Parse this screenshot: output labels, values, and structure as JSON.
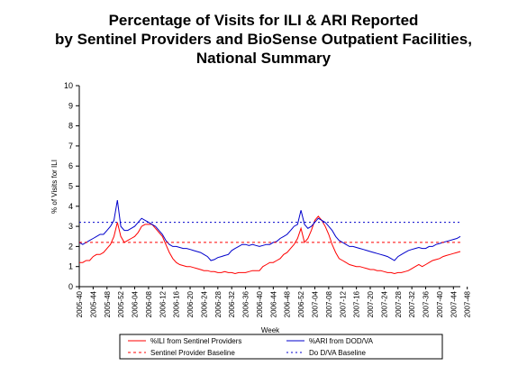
{
  "chart_data": {
    "type": "line",
    "title_lines": [
      "Percentage of Visits for ILI & ARI Reported",
      "by Sentinel Providers and BioSense Outpatient Facilities,",
      "National Summary"
    ],
    "xlabel": "Week",
    "ylabel": "% of Visits for ILI",
    "ylim": [
      0,
      10
    ],
    "yticks": [
      "0",
      "1",
      "2",
      "3",
      "4",
      "5",
      "6",
      "7",
      "8",
      "9",
      "10"
    ],
    "xtick_labels": [
      "2005-40",
      "2005-44",
      "2005-48",
      "2005-52",
      "2006-04",
      "2006-08",
      "2006-12",
      "2006-16",
      "2006-20",
      "2006-24",
      "2006-28",
      "2006-32",
      "2006-36",
      "2006-40",
      "2006-44",
      "2006-48",
      "2006-52",
      "2007-04",
      "2007-08",
      "2007-12",
      "2007-16",
      "2007-20",
      "2007-24",
      "2007-28",
      "2007-32",
      "2007-36",
      "2007-40",
      "2007-44",
      "2007-48"
    ],
    "series": [
      {
        "name": "%ILI from Sentinel Providers",
        "color": "#ff0000",
        "style": "solid",
        "values": [
          1.2,
          1.2,
          1.3,
          1.3,
          1.5,
          1.6,
          1.6,
          1.7,
          1.9,
          2.1,
          2.5,
          3.2,
          2.5,
          2.2,
          2.3,
          2.4,
          2.5,
          2.7,
          3.0,
          3.1,
          3.1,
          3.1,
          2.9,
          2.7,
          2.5,
          2.1,
          1.7,
          1.4,
          1.2,
          1.1,
          1.05,
          1.0,
          1.0,
          0.95,
          0.9,
          0.85,
          0.8,
          0.8,
          0.75,
          0.75,
          0.7,
          0.7,
          0.75,
          0.7,
          0.7,
          0.65,
          0.7,
          0.7,
          0.7,
          0.75,
          0.8,
          0.8,
          0.8,
          1.0,
          1.1,
          1.2,
          1.2,
          1.3,
          1.4,
          1.6,
          1.7,
          1.9,
          2.1,
          2.4,
          2.9,
          2.2,
          2.4,
          2.8,
          3.3,
          3.5,
          3.3,
          3.0,
          2.6,
          2.1,
          1.7,
          1.4,
          1.3,
          1.2,
          1.1,
          1.05,
          1.0,
          1.0,
          0.95,
          0.9,
          0.85,
          0.85,
          0.8,
          0.8,
          0.75,
          0.7,
          0.7,
          0.65,
          0.7,
          0.7,
          0.75,
          0.8,
          0.9,
          1.0,
          1.1,
          1.0,
          1.1,
          1.2,
          1.3,
          1.35,
          1.4,
          1.5,
          1.55,
          1.6,
          1.65,
          1.7,
          1.75
        ]
      },
      {
        "name": "%ARI from DOD/VA",
        "color": "#0000cc",
        "style": "solid",
        "values": [
          2.2,
          2.1,
          2.2,
          2.3,
          2.4,
          2.5,
          2.6,
          2.6,
          2.8,
          3.0,
          3.3,
          4.3,
          3.0,
          2.8,
          2.8,
          2.9,
          3.0,
          3.2,
          3.4,
          3.3,
          3.2,
          3.1,
          3.0,
          2.8,
          2.6,
          2.3,
          2.1,
          2.0,
          2.0,
          1.95,
          1.9,
          1.9,
          1.85,
          1.8,
          1.75,
          1.7,
          1.6,
          1.5,
          1.3,
          1.35,
          1.45,
          1.5,
          1.55,
          1.6,
          1.8,
          1.9,
          2.0,
          2.1,
          2.1,
          2.05,
          2.1,
          2.05,
          2.0,
          2.05,
          2.1,
          2.1,
          2.2,
          2.25,
          2.4,
          2.5,
          2.6,
          2.8,
          3.0,
          3.1,
          3.8,
          3.1,
          2.9,
          3.0,
          3.2,
          3.4,
          3.3,
          3.2,
          3.0,
          2.8,
          2.5,
          2.3,
          2.2,
          2.1,
          2.0,
          2.0,
          1.95,
          1.9,
          1.85,
          1.8,
          1.75,
          1.7,
          1.65,
          1.6,
          1.55,
          1.5,
          1.4,
          1.3,
          1.5,
          1.6,
          1.7,
          1.8,
          1.85,
          1.9,
          1.95,
          1.9,
          1.9,
          2.0,
          2.0,
          2.1,
          2.15,
          2.2,
          2.25,
          2.3,
          2.35,
          2.4,
          2.5
        ]
      },
      {
        "name": "Sentinel Provider Baseline",
        "color": "#ff0000",
        "style": "dashed",
        "values": [
          2.2,
          2.2
        ]
      },
      {
        "name": "Do D/VA Baseline",
        "color": "#0000cc",
        "style": "dotted",
        "values": [
          3.2,
          3.2
        ]
      }
    ],
    "legend_position": "bottom",
    "grid": false
  }
}
